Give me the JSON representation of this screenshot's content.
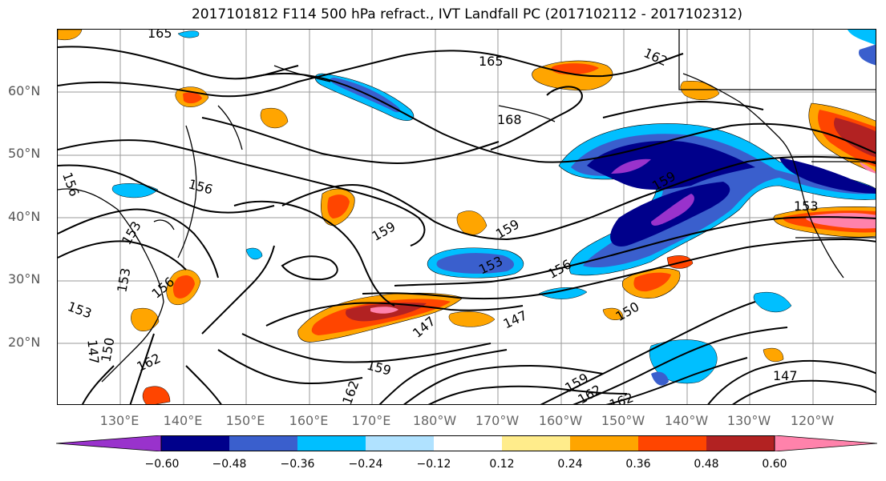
{
  "title": "2017101812 F114 500 hPa refract., IVT Landfall PC (2017102112 - 2017102312)",
  "latitude_labels": [
    "60°N",
    "50°N",
    "40°N",
    "30°N",
    "20°N"
  ],
  "longitude_labels": [
    "130°E",
    "140°E",
    "150°E",
    "160°E",
    "170°E",
    "180°W",
    "170°W",
    "160°W",
    "150°W",
    "140°W",
    "130°W",
    "120°W"
  ],
  "contour_labels": [
    "165",
    "165",
    "162",
    "168",
    "156",
    "156",
    "159",
    "153",
    "153",
    "159",
    "153",
    "156",
    "153",
    "156",
    "153",
    "147",
    "147",
    "147",
    "150",
    "150",
    "162",
    "159",
    "162",
    "159",
    "162",
    "162",
    "147",
    "159"
  ],
  "colorbar": {
    "ticks": [
      "−0.60",
      "−0.48",
      "−0.36",
      "−0.24",
      "−0.12",
      "0.12",
      "0.24",
      "0.36",
      "0.48",
      "0.60"
    ],
    "colors": [
      "#9932cc",
      "#00008b",
      "#3a5fcd",
      "#00bfff",
      "#b0e2ff",
      "#ffffff",
      "#ffec8b",
      "#ffa500",
      "#ff4500",
      "#b22222",
      "#ff82ab"
    ]
  },
  "colors": {
    "negative_dark": "#00008b",
    "negative_mid": "#3a5fcd",
    "negative_light": "#00bfff",
    "negative_pale": "#b0e2ff",
    "negative_extreme": "#9932cc",
    "positive_pale": "#ffec8b",
    "positive_light": "#ffa500",
    "positive_mid": "#ff4500",
    "positive_dark": "#b22222",
    "positive_extreme": "#ff82ab"
  }
}
